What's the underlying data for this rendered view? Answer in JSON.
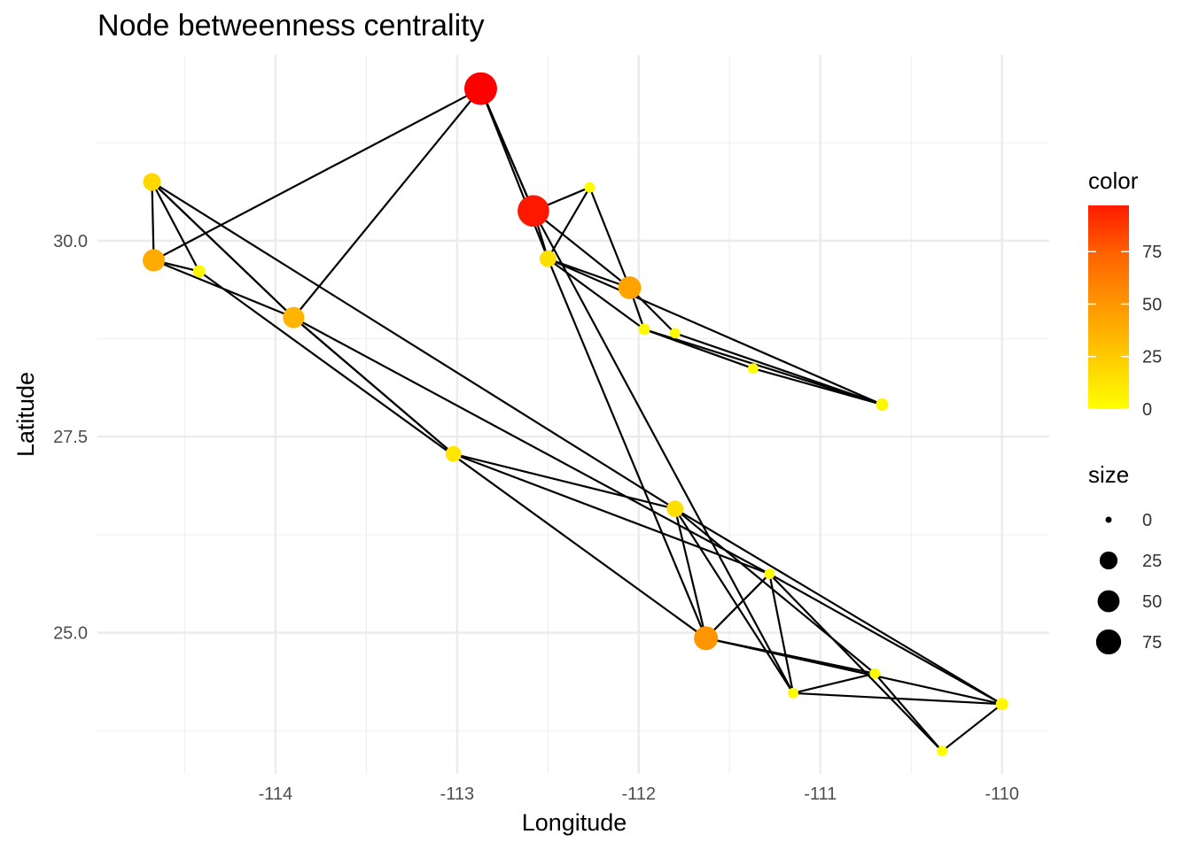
{
  "chart_data": {
    "type": "scatter",
    "title": "Node betweenness centrality",
    "xlabel": "Longitude",
    "ylabel": "Latitude",
    "xlim": [
      -114.98,
      -109.74
    ],
    "ylim": [
      23.2,
      32.37
    ],
    "x_ticks": [
      {
        "value": -114,
        "label": "-114"
      },
      {
        "value": -113,
        "label": "-113"
      },
      {
        "value": -112,
        "label": "-112"
      },
      {
        "value": -111,
        "label": "-111"
      },
      {
        "value": -110,
        "label": "-110"
      }
    ],
    "y_ticks": [
      {
        "value": 30.0,
        "label": "30.0"
      },
      {
        "value": 27.5,
        "label": "27.5"
      },
      {
        "value": 25.0,
        "label": "25.0"
      }
    ],
    "grid": true,
    "nodes": [
      {
        "lon": -112.87,
        "lat": 31.94,
        "value": 97
      },
      {
        "lon": -112.58,
        "lat": 30.38,
        "value": 88
      },
      {
        "lon": -114.68,
        "lat": 30.75,
        "value": 15
      },
      {
        "lon": -114.67,
        "lat": 29.75,
        "value": 32
      },
      {
        "lon": -114.42,
        "lat": 29.61,
        "value": 3
      },
      {
        "lon": -113.9,
        "lat": 29.02,
        "value": 28
      },
      {
        "lon": -112.5,
        "lat": 29.77,
        "value": 12
      },
      {
        "lon": -112.27,
        "lat": 30.68,
        "value": 1
      },
      {
        "lon": -112.05,
        "lat": 29.4,
        "value": 35
      },
      {
        "lon": -111.97,
        "lat": 28.87,
        "value": 2
      },
      {
        "lon": -111.8,
        "lat": 28.82,
        "value": 1
      },
      {
        "lon": -111.37,
        "lat": 28.37,
        "value": 1
      },
      {
        "lon": -110.66,
        "lat": 27.91,
        "value": 3
      },
      {
        "lon": -113.02,
        "lat": 27.28,
        "value": 10
      },
      {
        "lon": -111.8,
        "lat": 26.58,
        "value": 12
      },
      {
        "lon": -111.28,
        "lat": 25.75,
        "value": 1
      },
      {
        "lon": -111.63,
        "lat": 24.93,
        "value": 40
      },
      {
        "lon": -110.7,
        "lat": 24.48,
        "value": 1
      },
      {
        "lon": -111.15,
        "lat": 24.23,
        "value": 1
      },
      {
        "lon": -110.0,
        "lat": 24.09,
        "value": 3
      },
      {
        "lon": -110.33,
        "lat": 23.49,
        "value": 1
      }
    ],
    "edges": [
      [
        0,
        1
      ],
      [
        0,
        1
      ],
      [
        0,
        6
      ],
      [
        0,
        3
      ],
      [
        0,
        5
      ],
      [
        1,
        6
      ],
      [
        1,
        7
      ],
      [
        1,
        8
      ],
      [
        7,
        6
      ],
      [
        7,
        8
      ],
      [
        6,
        8
      ],
      [
        6,
        9
      ],
      [
        6,
        12
      ],
      [
        6,
        16
      ],
      [
        8,
        9
      ],
      [
        8,
        10
      ],
      [
        9,
        11
      ],
      [
        10,
        12
      ],
      [
        11,
        12
      ],
      [
        9,
        12
      ],
      [
        2,
        3
      ],
      [
        2,
        4
      ],
      [
        2,
        5
      ],
      [
        2,
        5
      ],
      [
        2,
        14
      ],
      [
        3,
        4
      ],
      [
        3,
        5
      ],
      [
        5,
        13
      ],
      [
        5,
        13
      ],
      [
        5,
        15
      ],
      [
        4,
        16
      ],
      [
        13,
        14
      ],
      [
        13,
        15
      ],
      [
        14,
        16
      ],
      [
        14,
        17
      ],
      [
        14,
        18
      ],
      [
        14,
        19
      ],
      [
        15,
        16
      ],
      [
        15,
        18
      ],
      [
        15,
        20
      ],
      [
        15,
        19
      ],
      [
        16,
        17
      ],
      [
        16,
        19
      ],
      [
        18,
        17
      ],
      [
        18,
        19
      ],
      [
        17,
        20
      ],
      [
        20,
        19
      ],
      [
        1,
        18
      ]
    ],
    "legend": {
      "color": {
        "title": "color",
        "range": [
          0,
          97
        ],
        "ticks": [
          {
            "value": 0,
            "label": "0"
          },
          {
            "value": 25,
            "label": "25"
          },
          {
            "value": 50,
            "label": "50"
          },
          {
            "value": 75,
            "label": "75"
          }
        ],
        "low_color": "#ffff00",
        "high_color": "#ff0000"
      },
      "size": {
        "title": "size",
        "items": [
          {
            "value": 0,
            "label": "0"
          },
          {
            "value": 25,
            "label": "25"
          },
          {
            "value": 50,
            "label": "50"
          },
          {
            "value": 75,
            "label": "75"
          }
        ]
      },
      "placement": "right"
    }
  }
}
